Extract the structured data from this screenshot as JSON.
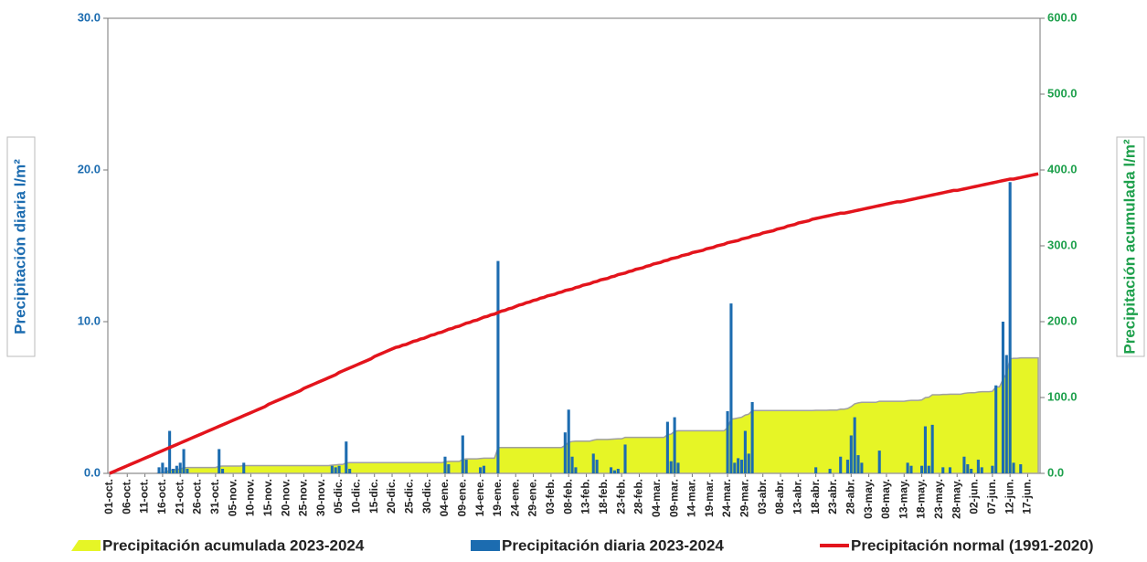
{
  "chart_data": {
    "type": "bar",
    "ylabel": "Precipitación diaria l/m²",
    "y2label": "Precipitación acumulada l/m²",
    "ylim": [
      0,
      30
    ],
    "yticks": [
      {
        "value": 0,
        "label": "0.0"
      },
      {
        "value": 10,
        "label": "10.0"
      },
      {
        "value": 20,
        "label": "20.0"
      },
      {
        "value": 30,
        "label": "30.0"
      }
    ],
    "y2lim": [
      0,
      600
    ],
    "y2ticks": [
      {
        "value": 0,
        "label": "0.0"
      },
      {
        "value": 100,
        "label": "100.0"
      },
      {
        "value": 200,
        "label": "200.0"
      },
      {
        "value": 300,
        "label": "300.0"
      },
      {
        "value": 400,
        "label": "400.0"
      },
      {
        "value": 500,
        "label": "500.0"
      },
      {
        "value": 600,
        "label": "600.0"
      }
    ],
    "categories": [
      "01-oct.",
      null,
      null,
      null,
      null,
      "06-oct.",
      null,
      null,
      null,
      null,
      "11-oct.",
      null,
      null,
      null,
      null,
      "16-oct.",
      null,
      null,
      null,
      null,
      "21-oct.",
      null,
      null,
      null,
      null,
      "26-oct.",
      null,
      null,
      null,
      null,
      "31-oct.",
      null,
      null,
      null,
      null,
      "05-nov.",
      null,
      null,
      null,
      null,
      "10-nov.",
      null,
      null,
      null,
      null,
      "15-nov.",
      null,
      null,
      null,
      null,
      "20-nov.",
      null,
      null,
      null,
      null,
      "25-nov.",
      null,
      null,
      null,
      null,
      "30-nov.",
      null,
      null,
      null,
      null,
      "05-dic.",
      null,
      null,
      null,
      null,
      "10-dic.",
      null,
      null,
      null,
      null,
      "15-dic.",
      null,
      null,
      null,
      null,
      "20-dic.",
      null,
      null,
      null,
      null,
      "25-dic.",
      null,
      null,
      null,
      null,
      "30-dic.",
      null,
      null,
      null,
      null,
      "04-ene.",
      null,
      null,
      null,
      null,
      "09-ene.",
      null,
      null,
      null,
      null,
      "14-ene.",
      null,
      null,
      null,
      null,
      "19-ene.",
      null,
      null,
      null,
      null,
      "24-ene.",
      null,
      null,
      null,
      null,
      "29-ene.",
      null,
      null,
      null,
      null,
      "03-feb.",
      null,
      null,
      null,
      null,
      "08-feb.",
      null,
      null,
      null,
      null,
      "13-feb.",
      null,
      null,
      null,
      null,
      "18-feb.",
      null,
      null,
      null,
      null,
      "23-feb.",
      null,
      null,
      null,
      null,
      "28-feb.",
      null,
      null,
      null,
      null,
      "04-mar.",
      null,
      null,
      null,
      null,
      "09-mar.",
      null,
      null,
      null,
      null,
      "14-mar.",
      null,
      null,
      null,
      null,
      "19-mar.",
      null,
      null,
      null,
      null,
      "24-mar.",
      null,
      null,
      null,
      null,
      "29-mar.",
      null,
      null,
      null,
      null,
      "03-abr.",
      null,
      null,
      null,
      null,
      "08-abr.",
      null,
      null,
      null,
      null,
      "13-abr.",
      null,
      null,
      null,
      null,
      "18-abr.",
      null,
      null,
      null,
      null,
      "23-abr.",
      null,
      null,
      null,
      null,
      "28-abr.",
      null,
      null,
      null,
      null,
      "03-may.",
      null,
      null,
      null,
      null,
      "08-may.",
      null,
      null,
      null,
      null,
      "13-may.",
      null,
      null,
      null,
      null,
      "18-may.",
      null,
      null,
      null,
      null,
      "23-may.",
      null,
      null,
      null,
      null,
      "28-may.",
      null,
      null,
      null,
      null,
      "02-jun.",
      null,
      null,
      null,
      null,
      "07-jun.",
      null,
      null,
      null,
      null,
      "12-jun.",
      null,
      null,
      null,
      null,
      "17-jun.",
      null,
      null,
      null
    ],
    "series": [
      {
        "name": "Precipitación acumulada 2023-2024",
        "type": "area",
        "axis": "y2",
        "color": "#e6f526",
        "values": [
          0,
          0,
          0,
          0,
          0,
          0,
          0,
          0,
          0,
          0,
          0,
          0,
          0,
          0,
          0.4,
          1.1,
          1.5,
          4.3,
          4.6,
          5.1,
          5.8,
          7.4,
          7.7,
          7.7,
          7.7,
          7.7,
          7.7,
          7.7,
          7.7,
          7.7,
          7.7,
          9.3,
          9.6,
          9.6,
          9.6,
          9.6,
          9.6,
          9.6,
          10.3,
          10.3,
          10.3,
          10.3,
          10.3,
          10.3,
          10.3,
          10.3,
          10.3,
          10.3,
          10.3,
          10.3,
          10.3,
          10.3,
          10.3,
          10.3,
          10.3,
          10.3,
          10.3,
          10.3,
          10.3,
          10.3,
          10.3,
          10.3,
          10.3,
          10.8,
          11.2,
          11.7,
          11.7,
          13.8,
          14.1,
          14.1,
          14.1,
          14.1,
          14.1,
          14.1,
          14.1,
          14.1,
          14.1,
          14.1,
          14.1,
          14.1,
          14.1,
          14.1,
          14.1,
          14.1,
          14.1,
          14.1,
          14.1,
          14.1,
          14.1,
          14.1,
          14.1,
          14.1,
          14.1,
          14.1,
          14.1,
          15.2,
          15.8,
          15.8,
          15.8,
          15.8,
          18.3,
          19.2,
          19.2,
          19.2,
          19.2,
          19.6,
          20.1,
          20.1,
          20.1,
          20.1,
          34.1,
          34.1,
          34.1,
          34.1,
          34.1,
          34.1,
          34.1,
          34.1,
          34.1,
          34.1,
          34.1,
          34.1,
          34.1,
          34.1,
          34.1,
          34.1,
          34.1,
          34.1,
          34.1,
          36.8,
          41.0,
          42.1,
          42.5,
          42.5,
          42.5,
          42.5,
          42.5,
          43.8,
          44.7,
          44.7,
          44.7,
          44.7,
          45.1,
          45.3,
          45.6,
          45.6,
          47.5,
          47.5,
          47.5,
          47.5,
          47.5,
          47.5,
          47.5,
          47.5,
          47.5,
          47.5,
          47.5,
          47.5,
          50.9,
          51.7,
          55.4,
          56.1,
          56.1,
          56.1,
          56.1,
          56.1,
          56.1,
          56.1,
          56.1,
          56.1,
          56.1,
          56.1,
          56.1,
          56.1,
          56.1,
          60.2,
          71.4,
          72.1,
          73.1,
          74.0,
          76.8,
          78.1,
          82.8,
          82.8,
          82.8,
          82.8,
          82.8,
          82.8,
          82.8,
          82.8,
          82.8,
          82.8,
          82.8,
          82.8,
          82.8,
          82.8,
          82.8,
          82.8,
          82.8,
          82.8,
          83.2,
          83.2,
          83.2,
          83.2,
          83.5,
          83.5,
          83.5,
          84.6,
          84.6,
          85.5,
          88.0,
          91.7,
          92.9,
          93.6,
          93.6,
          93.6,
          93.6,
          93.6,
          95.1,
          95.1,
          95.1,
          95.1,
          95.1,
          95.1,
          95.1,
          95.1,
          95.8,
          96.3,
          96.3,
          96.3,
          96.8,
          99.9,
          100.4,
          103.6,
          103.6,
          103.6,
          104.0,
          104.0,
          104.4,
          104.4,
          104.4,
          104.4,
          105.5,
          106.1,
          106.4,
          106.4,
          107.3,
          107.7,
          107.7,
          107.7,
          108.2,
          114.0,
          114.0,
          124.0,
          131.8,
          151.0,
          151.7,
          151.7,
          152.3,
          152.3,
          152.3,
          152.3,
          152.3,
          152.3
        ]
      },
      {
        "name": "Precipitación diaria 2023-2024",
        "type": "bar",
        "axis": "y",
        "color": "#1c6cb0",
        "values": [
          0,
          0,
          0,
          0,
          0,
          0,
          0,
          0,
          0,
          0,
          0,
          0,
          0,
          0,
          0.4,
          0.7,
          0.4,
          2.8,
          0.3,
          0.5,
          0.7,
          1.6,
          0.3,
          0,
          0,
          0,
          0,
          0,
          0,
          0,
          0,
          1.6,
          0.3,
          0,
          0,
          0,
          0,
          0,
          0.7,
          0,
          0,
          0,
          0,
          0,
          0,
          0,
          0,
          0,
          0,
          0,
          0,
          0,
          0,
          0,
          0,
          0,
          0,
          0,
          0,
          0,
          0,
          0,
          0,
          0.5,
          0.4,
          0.5,
          0,
          2.1,
          0.3,
          0,
          0,
          0,
          0,
          0,
          0,
          0,
          0,
          0,
          0,
          0,
          0,
          0,
          0,
          0,
          0,
          0,
          0,
          0,
          0,
          0,
          0,
          0,
          0,
          0,
          0,
          1.1,
          0.6,
          0,
          0,
          0,
          2.5,
          0.9,
          0,
          0,
          0,
          0.4,
          0.5,
          0,
          0,
          0,
          14.0,
          0,
          0,
          0,
          0,
          0,
          0,
          0,
          0,
          0,
          0,
          0,
          0,
          0,
          0,
          0,
          0,
          0,
          0,
          2.7,
          4.2,
          1.1,
          0.4,
          0,
          0,
          0,
          0,
          1.3,
          0.9,
          0,
          0,
          0,
          0.4,
          0.2,
          0.3,
          0,
          1.9,
          0,
          0,
          0,
          0,
          0,
          0,
          0,
          0,
          0,
          0,
          0,
          3.4,
          0.8,
          3.7,
          0.7,
          0,
          0,
          0,
          0,
          0,
          0,
          0,
          0,
          0,
          0,
          0,
          0,
          0,
          4.1,
          11.2,
          0.7,
          1.0,
          0.9,
          2.8,
          1.3,
          4.7,
          0,
          0,
          0,
          0,
          0,
          0,
          0,
          0,
          0,
          0,
          0,
          0,
          0,
          0,
          0,
          0,
          0,
          0.4,
          0,
          0,
          0,
          0.3,
          0,
          0,
          1.1,
          0,
          0.9,
          2.5,
          3.7,
          1.2,
          0.7,
          0,
          0,
          0,
          0,
          1.5,
          0,
          0,
          0,
          0,
          0,
          0,
          0,
          0.7,
          0.5,
          0,
          0,
          0.5,
          3.1,
          0.5,
          3.2,
          0,
          0,
          0.4,
          0,
          0.4,
          0,
          0,
          0,
          1.1,
          0.6,
          0.3,
          0,
          0.9,
          0.4,
          0,
          0,
          0.5,
          5.8,
          0,
          10.0,
          7.8,
          19.2,
          0.7,
          0,
          0.6,
          0,
          0,
          0,
          0,
          0
        ]
      },
      {
        "name": "Precipitación normal (1991-2020)",
        "type": "line",
        "axis": "y2",
        "color": "#e3141c",
        "values": [
          0,
          2,
          4,
          6,
          8,
          10,
          12,
          14,
          16,
          18,
          20,
          22,
          24,
          26,
          28,
          30,
          32,
          34,
          36,
          38,
          40,
          42,
          44,
          46,
          48,
          50,
          52,
          54,
          56,
          58,
          60,
          62,
          64,
          66,
          68,
          70,
          72,
          74,
          76,
          78,
          80,
          82,
          84,
          86,
          88,
          91,
          93,
          95,
          97,
          99,
          101,
          103,
          105,
          107,
          109,
          112,
          114,
          116,
          118,
          120,
          122,
          124,
          126,
          128,
          130,
          133,
          135,
          137,
          139,
          141,
          143,
          145,
          147,
          149,
          151,
          154,
          156,
          158,
          160,
          162,
          164,
          166,
          167,
          169,
          170,
          172,
          174,
          175,
          177,
          178,
          180,
          182,
          183,
          185,
          186,
          188,
          190,
          191,
          193,
          194,
          196,
          198,
          199,
          201,
          202,
          204,
          206,
          207,
          209,
          210,
          212,
          214,
          215,
          217,
          218,
          220,
          222,
          223,
          225,
          226,
          228,
          229,
          231,
          232,
          234,
          235,
          236,
          238,
          239,
          241,
          242,
          243,
          245,
          246,
          248,
          249,
          250,
          252,
          253,
          255,
          256,
          257,
          259,
          260,
          262,
          263,
          264,
          266,
          267,
          269,
          270,
          271,
          273,
          274,
          276,
          277,
          278,
          280,
          281,
          283,
          284,
          285,
          287,
          288,
          289,
          291,
          292,
          293,
          294,
          296,
          297,
          298,
          300,
          301,
          302,
          304,
          305,
          306,
          307,
          309,
          310,
          311,
          313,
          314,
          315,
          317,
          318,
          319,
          320,
          322,
          323,
          324,
          326,
          327,
          328,
          330,
          331,
          332,
          333,
          335,
          336,
          337,
          338,
          339,
          340,
          341,
          342,
          343,
          343,
          344,
          345,
          346,
          347,
          348,
          349,
          350,
          351,
          352,
          353,
          354,
          355,
          356,
          357,
          358,
          358,
          359,
          360,
          361,
          362,
          363,
          364,
          365,
          366,
          367,
          368,
          369,
          370,
          371,
          372,
          373,
          373,
          374,
          375,
          376,
          377,
          378,
          379,
          380,
          381,
          382,
          383,
          384,
          385,
          386,
          387,
          388,
          388,
          389,
          390,
          391,
          392,
          393,
          394,
          395
        ]
      }
    ]
  }
}
